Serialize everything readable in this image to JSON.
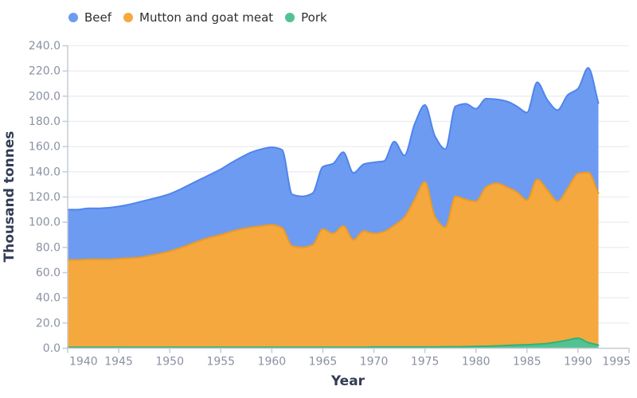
{
  "chart_data": {
    "type": "area",
    "stacked": true,
    "title": "",
    "xlabel": "Year",
    "ylabel": "Thousand tonnes",
    "legend_position": "top-left",
    "grid": "horizontal",
    "xlim": [
      1940,
      1995
    ],
    "ylim": [
      0,
      240
    ],
    "x_ticks": [
      1940,
      1945,
      1950,
      1955,
      1960,
      1965,
      1970,
      1975,
      1980,
      1985,
      1990,
      1995
    ],
    "y_ticks": [
      0,
      20,
      40,
      60,
      80,
      100,
      120,
      140,
      160,
      180,
      200,
      220,
      240
    ],
    "y_tick_decimals": 1,
    "stack_bottom_to_top": [
      "Pork",
      "Mutton and goat meat",
      "Beef"
    ],
    "x": [
      1940,
      1941,
      1942,
      1943,
      1944,
      1945,
      1946,
      1947,
      1948,
      1949,
      1950,
      1951,
      1952,
      1953,
      1954,
      1955,
      1956,
      1957,
      1958,
      1959,
      1960,
      1961,
      1962,
      1963,
      1964,
      1965,
      1966,
      1967,
      1968,
      1969,
      1970,
      1971,
      1972,
      1973,
      1974,
      1975,
      1976,
      1977,
      1978,
      1979,
      1980,
      1981,
      1982,
      1983,
      1984,
      1985,
      1986,
      1987,
      1988,
      1989,
      1990,
      1991,
      1992
    ],
    "series": [
      {
        "name": "Beef",
        "fill": "#6D9BF1",
        "stroke": "#4F85EC",
        "values": [
          40,
          40,
          40.5,
          40.5,
          41,
          41.5,
          42.5,
          44,
          44.5,
          45,
          45.5,
          46.5,
          47.5,
          48.5,
          50,
          52,
          54.5,
          57,
          59.5,
          61,
          61.5,
          62,
          41,
          40.5,
          41,
          49.5,
          55.5,
          58.5,
          53,
          53,
          56.5,
          56,
          66.5,
          49,
          60,
          61,
          64,
          62,
          71.5,
          76,
          73.5,
          70,
          66.5,
          68,
          68,
          69.5,
          77,
          71.5,
          72.5,
          74,
          67.5,
          83,
          71.5
        ]
      },
      {
        "name": "Mutton and goat meat",
        "fill": "#F5A83D",
        "stroke": "#EC9A25",
        "values": [
          69.2,
          69.2,
          69.7,
          69.7,
          69.7,
          70.2,
          70.7,
          71.2,
          72.7,
          74.2,
          76.2,
          78.7,
          81.7,
          84.7,
          87.2,
          89.2,
          91.7,
          93.7,
          95.2,
          96.2,
          97.2,
          94.7,
          80.2,
          79.2,
          81.2,
          93.7,
          90.2,
          96.2,
          85.2,
          92.2,
          90,
          91.5,
          96.5,
          103,
          117,
          131,
          103,
          94.8,
          119.3,
          116.7,
          115,
          126.4,
          129.2,
          125.8,
          121.5,
          114.7,
          130.8,
          121.7,
          111.5,
          120.5,
          130.5,
          135,
          120.5
        ]
      },
      {
        "name": "Pork",
        "fill": "#53C292",
        "stroke": "#2FB27B",
        "values": [
          0.8,
          0.8,
          0.8,
          0.8,
          0.8,
          0.8,
          0.8,
          0.8,
          0.8,
          0.8,
          0.8,
          0.8,
          0.8,
          0.8,
          0.8,
          0.8,
          0.8,
          0.8,
          0.8,
          0.8,
          0.8,
          0.8,
          0.8,
          0.8,
          0.8,
          0.8,
          0.8,
          0.8,
          0.8,
          0.8,
          1,
          1,
          1,
          1,
          1,
          1,
          1,
          1.2,
          1.2,
          1.3,
          1.5,
          1.6,
          1.8,
          2.2,
          2.5,
          2.8,
          3.2,
          3.8,
          5,
          6.5,
          8,
          4.5,
          2.5
        ]
      }
    ],
    "styles": {
      "background": "#FFFFFF",
      "grid_color": "#ECEDF2",
      "axis_color": "#C6CBD4",
      "tick_label_color": "#8A91A3",
      "axis_title_color": "#333C55",
      "legend_text_color": "#2F2F2F"
    }
  }
}
